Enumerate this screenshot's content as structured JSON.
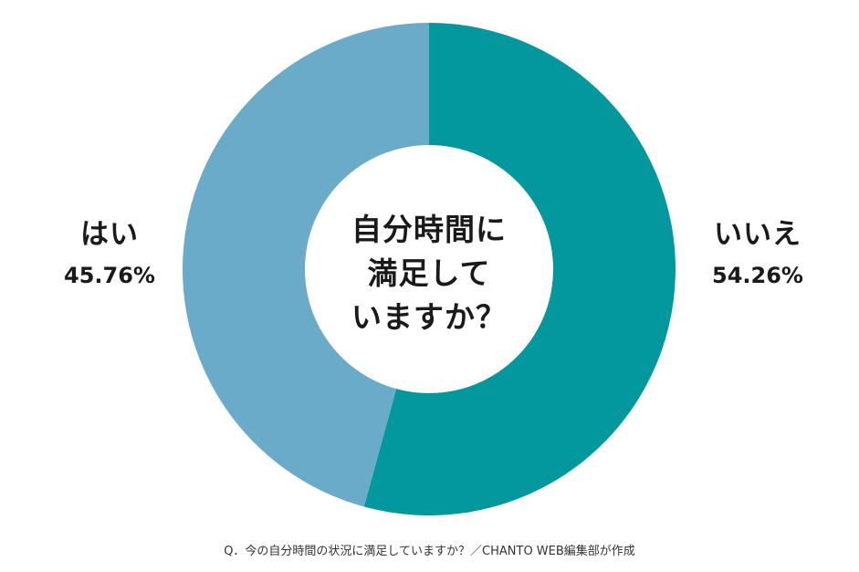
{
  "chart_data": {
    "type": "pie",
    "donut": true,
    "start": "top",
    "direction": "clockwise",
    "slices": [
      {
        "label": "いいえ",
        "value": 54.26,
        "value_label": "54.26%",
        "color": "#03989e"
      },
      {
        "label": "はい",
        "value": 45.76,
        "value_label": "45.76%",
        "color": "#6aabca"
      }
    ],
    "center_text": [
      "自分時間に",
      "満足して",
      "いますか？"
    ]
  },
  "caption": "Q．今の自分時間の状況に満足していますか？／CHANTO WEB編集部が作成"
}
